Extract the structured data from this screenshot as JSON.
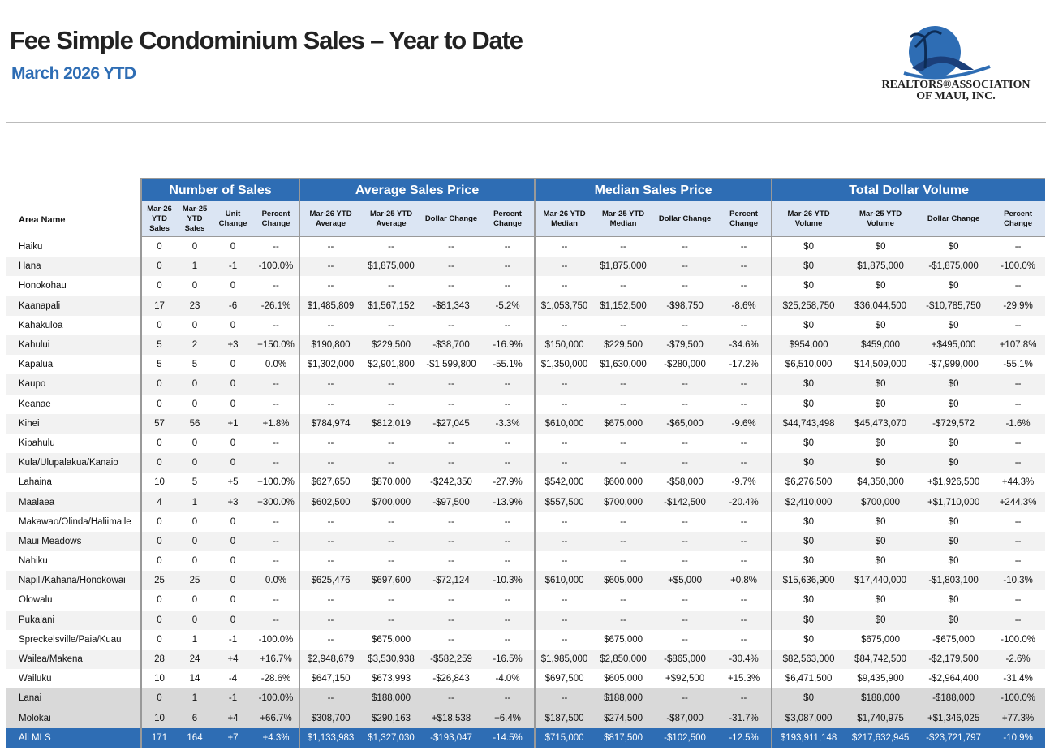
{
  "header": {
    "title": "Fee Simple Condominium Sales – Year to Date",
    "subtitle": "March 2026 YTD",
    "logo_line1": "REALTORS®ASSOCIATION",
    "logo_line2": "OF MAUI, INC."
  },
  "table": {
    "area_header": "Area Name",
    "groups": [
      "Number of Sales",
      "Average Sales Price",
      "Median Sales Price",
      "Total Dollar Volume"
    ],
    "columns": [
      "Mar-26 YTD Sales",
      "Mar-25 YTD Sales",
      "Unit Change",
      "Percent Change",
      "Mar-26 YTD Average",
      "Mar-25 YTD Average",
      "Dollar Change",
      "Percent Change",
      "Mar-26 YTD Median",
      "Mar-25 YTD Median",
      "Dollar Change",
      "Percent Change",
      "Mar-26 YTD Volume",
      "Mar-25 YTD Volume",
      "Dollar Change",
      "Percent Change"
    ],
    "rows": [
      [
        "Haiku",
        "0",
        "0",
        "0",
        "--",
        "--",
        "--",
        "--",
        "--",
        "--",
        "--",
        "--",
        "--",
        "$0",
        "$0",
        "$0",
        "--"
      ],
      [
        "Hana",
        "0",
        "1",
        "-1",
        "-100.0%",
        "--",
        "$1,875,000",
        "--",
        "--",
        "--",
        "$1,875,000",
        "--",
        "--",
        "$0",
        "$1,875,000",
        "-$1,875,000",
        "-100.0%"
      ],
      [
        "Honokohau",
        "0",
        "0",
        "0",
        "--",
        "--",
        "--",
        "--",
        "--",
        "--",
        "--",
        "--",
        "--",
        "$0",
        "$0",
        "$0",
        "--"
      ],
      [
        "Kaanapali",
        "17",
        "23",
        "-6",
        "-26.1%",
        "$1,485,809",
        "$1,567,152",
        "-$81,343",
        "-5.2%",
        "$1,053,750",
        "$1,152,500",
        "-$98,750",
        "-8.6%",
        "$25,258,750",
        "$36,044,500",
        "-$10,785,750",
        "-29.9%"
      ],
      [
        "Kahakuloa",
        "0",
        "0",
        "0",
        "--",
        "--",
        "--",
        "--",
        "--",
        "--",
        "--",
        "--",
        "--",
        "$0",
        "$0",
        "$0",
        "--"
      ],
      [
        "Kahului",
        "5",
        "2",
        "+3",
        "+150.0%",
        "$190,800",
        "$229,500",
        "-$38,700",
        "-16.9%",
        "$150,000",
        "$229,500",
        "-$79,500",
        "-34.6%",
        "$954,000",
        "$459,000",
        "+$495,000",
        "+107.8%"
      ],
      [
        "Kapalua",
        "5",
        "5",
        "0",
        "0.0%",
        "$1,302,000",
        "$2,901,800",
        "-$1,599,800",
        "-55.1%",
        "$1,350,000",
        "$1,630,000",
        "-$280,000",
        "-17.2%",
        "$6,510,000",
        "$14,509,000",
        "-$7,999,000",
        "-55.1%"
      ],
      [
        "Kaupo",
        "0",
        "0",
        "0",
        "--",
        "--",
        "--",
        "--",
        "--",
        "--",
        "--",
        "--",
        "--",
        "$0",
        "$0",
        "$0",
        "--"
      ],
      [
        "Keanae",
        "0",
        "0",
        "0",
        "--",
        "--",
        "--",
        "--",
        "--",
        "--",
        "--",
        "--",
        "--",
        "$0",
        "$0",
        "$0",
        "--"
      ],
      [
        "Kihei",
        "57",
        "56",
        "+1",
        "+1.8%",
        "$784,974",
        "$812,019",
        "-$27,045",
        "-3.3%",
        "$610,000",
        "$675,000",
        "-$65,000",
        "-9.6%",
        "$44,743,498",
        "$45,473,070",
        "-$729,572",
        "-1.6%"
      ],
      [
        "Kipahulu",
        "0",
        "0",
        "0",
        "--",
        "--",
        "--",
        "--",
        "--",
        "--",
        "--",
        "--",
        "--",
        "$0",
        "$0",
        "$0",
        "--"
      ],
      [
        "Kula/Ulupalakua/Kanaio",
        "0",
        "0",
        "0",
        "--",
        "--",
        "--",
        "--",
        "--",
        "--",
        "--",
        "--",
        "--",
        "$0",
        "$0",
        "$0",
        "--"
      ],
      [
        "Lahaina",
        "10",
        "5",
        "+5",
        "+100.0%",
        "$627,650",
        "$870,000",
        "-$242,350",
        "-27.9%",
        "$542,000",
        "$600,000",
        "-$58,000",
        "-9.7%",
        "$6,276,500",
        "$4,350,000",
        "+$1,926,500",
        "+44.3%"
      ],
      [
        "Maalaea",
        "4",
        "1",
        "+3",
        "+300.0%",
        "$602,500",
        "$700,000",
        "-$97,500",
        "-13.9%",
        "$557,500",
        "$700,000",
        "-$142,500",
        "-20.4%",
        "$2,410,000",
        "$700,000",
        "+$1,710,000",
        "+244.3%"
      ],
      [
        "Makawao/Olinda/Haliimaile",
        "0",
        "0",
        "0",
        "--",
        "--",
        "--",
        "--",
        "--",
        "--",
        "--",
        "--",
        "--",
        "$0",
        "$0",
        "$0",
        "--"
      ],
      [
        "Maui Meadows",
        "0",
        "0",
        "0",
        "--",
        "--",
        "--",
        "--",
        "--",
        "--",
        "--",
        "--",
        "--",
        "$0",
        "$0",
        "$0",
        "--"
      ],
      [
        "Nahiku",
        "0",
        "0",
        "0",
        "--",
        "--",
        "--",
        "--",
        "--",
        "--",
        "--",
        "--",
        "--",
        "$0",
        "$0",
        "$0",
        "--"
      ],
      [
        "Napili/Kahana/Honokowai",
        "25",
        "25",
        "0",
        "0.0%",
        "$625,476",
        "$697,600",
        "-$72,124",
        "-10.3%",
        "$610,000",
        "$605,000",
        "+$5,000",
        "+0.8%",
        "$15,636,900",
        "$17,440,000",
        "-$1,803,100",
        "-10.3%"
      ],
      [
        "Olowalu",
        "0",
        "0",
        "0",
        "--",
        "--",
        "--",
        "--",
        "--",
        "--",
        "--",
        "--",
        "--",
        "$0",
        "$0",
        "$0",
        "--"
      ],
      [
        "Pukalani",
        "0",
        "0",
        "0",
        "--",
        "--",
        "--",
        "--",
        "--",
        "--",
        "--",
        "--",
        "--",
        "$0",
        "$0",
        "$0",
        "--"
      ],
      [
        "Spreckelsville/Paia/Kuau",
        "0",
        "1",
        "-1",
        "-100.0%",
        "--",
        "$675,000",
        "--",
        "--",
        "--",
        "$675,000",
        "--",
        "--",
        "$0",
        "$675,000",
        "-$675,000",
        "-100.0%"
      ],
      [
        "Wailea/Makena",
        "28",
        "24",
        "+4",
        "+16.7%",
        "$2,948,679",
        "$3,530,938",
        "-$582,259",
        "-16.5%",
        "$1,985,000",
        "$2,850,000",
        "-$865,000",
        "-30.4%",
        "$82,563,000",
        "$84,742,500",
        "-$2,179,500",
        "-2.6%"
      ],
      [
        "Wailuku",
        "10",
        "14",
        "-4",
        "-28.6%",
        "$647,150",
        "$673,993",
        "-$26,843",
        "-4.0%",
        "$697,500",
        "$605,000",
        "+$92,500",
        "+15.3%",
        "$6,471,500",
        "$9,435,900",
        "-$2,964,400",
        "-31.4%"
      ]
    ],
    "island_rows": [
      [
        "Lanai",
        "0",
        "1",
        "-1",
        "-100.0%",
        "--",
        "$188,000",
        "--",
        "--",
        "--",
        "$188,000",
        "--",
        "--",
        "$0",
        "$188,000",
        "-$188,000",
        "-100.0%"
      ],
      [
        "Molokai",
        "10",
        "6",
        "+4",
        "+66.7%",
        "$308,700",
        "$290,163",
        "+$18,538",
        "+6.4%",
        "$187,500",
        "$274,500",
        "-$87,000",
        "-31.7%",
        "$3,087,000",
        "$1,740,975",
        "+$1,346,025",
        "+77.3%"
      ]
    ],
    "total_row": [
      "All MLS",
      "171",
      "164",
      "+7",
      "+4.3%",
      "$1,133,983",
      "$1,327,030",
      "-$193,047",
      "-14.5%",
      "$715,000",
      "$817,500",
      "-$102,500",
      "-12.5%",
      "$193,911,148",
      "$217,632,945",
      "-$23,721,797",
      "-10.9%"
    ]
  }
}
